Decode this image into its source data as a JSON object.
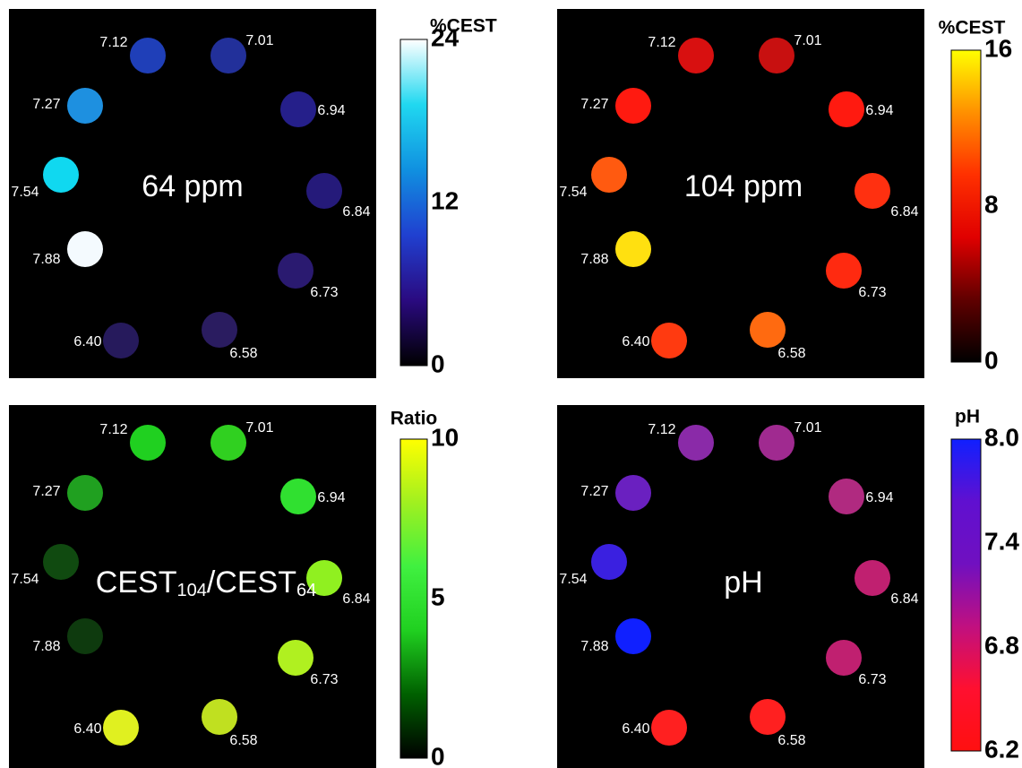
{
  "panels": [
    {
      "label_parts": [
        {
          "text": "64 ppm"
        }
      ],
      "colorbar": {
        "title": "%CEST",
        "ticks": [
          "24",
          "12",
          "0"
        ],
        "gradient": [
          "#000000",
          "#2a0a80",
          "#2040d0",
          "#1090e0",
          "#20d8f0",
          "#ffffff"
        ]
      },
      "spots": [
        {
          "label": "7.12",
          "color": "#1f3fb8"
        },
        {
          "label": "7.01",
          "color": "#22309a"
        },
        {
          "label": "7.27",
          "color": "#1e90e0"
        },
        {
          "label": "6.94",
          "color": "#251f8a"
        },
        {
          "label": "7.54",
          "color": "#10d8f0"
        },
        {
          "label": "6.84",
          "color": "#251a7a"
        },
        {
          "label": "7.88",
          "color": "#f4fafe"
        },
        {
          "label": "6.73",
          "color": "#2a1a70"
        },
        {
          "label": "6.40",
          "color": "#261a5c"
        },
        {
          "label": "6.58",
          "color": "#2a1c60"
        }
      ]
    },
    {
      "label_parts": [
        {
          "text": "104 ppm"
        }
      ],
      "colorbar": {
        "title": "%CEST",
        "ticks": [
          "16",
          "8",
          "0"
        ],
        "gradient": [
          "#000000",
          "#600000",
          "#e00000",
          "#ff3000",
          "#ff9000",
          "#ffff00"
        ]
      },
      "spots": [
        {
          "label": "7.12",
          "color": "#d81010"
        },
        {
          "label": "7.01",
          "color": "#c81010"
        },
        {
          "label": "7.27",
          "color": "#ff1a10"
        },
        {
          "label": "6.94",
          "color": "#ff1a10"
        },
        {
          "label": "7.54",
          "color": "#ff5a10"
        },
        {
          "label": "6.84",
          "color": "#ff3010"
        },
        {
          "label": "7.88",
          "color": "#ffe010"
        },
        {
          "label": "6.73",
          "color": "#ff2a10"
        },
        {
          "label": "6.40",
          "color": "#ff3a10"
        },
        {
          "label": "6.58",
          "color": "#ff6a10"
        }
      ]
    },
    {
      "label_parts": [
        {
          "text": "CEST"
        },
        {
          "sub": "104"
        },
        {
          "text": "/CEST"
        },
        {
          "sub": "64"
        }
      ],
      "colorbar": {
        "title": "Ratio",
        "ticks": [
          "10",
          "5",
          "0"
        ],
        "gradient": [
          "#000000",
          "#006000",
          "#20d020",
          "#40f040",
          "#a0f020",
          "#ffff00"
        ]
      },
      "spots": [
        {
          "label": "7.12",
          "color": "#20d020"
        },
        {
          "label": "7.01",
          "color": "#30d020"
        },
        {
          "label": "7.27",
          "color": "#20a020"
        },
        {
          "label": "6.94",
          "color": "#30e030"
        },
        {
          "label": "7.54",
          "color": "#104a10"
        },
        {
          "label": "6.84",
          "color": "#90f020"
        },
        {
          "label": "7.88",
          "color": "#0e3a0e"
        },
        {
          "label": "6.73",
          "color": "#b0f020"
        },
        {
          "label": "6.40",
          "color": "#e0f020"
        },
        {
          "label": "6.58",
          "color": "#c0e020"
        }
      ]
    },
    {
      "label_parts": [
        {
          "text": "pH"
        }
      ],
      "colorbar": {
        "title": "pH",
        "ticks": [
          "8.0",
          "7.4",
          "6.8",
          "6.2"
        ],
        "gradient": [
          "#ff1010",
          "#ff1030",
          "#c01080",
          "#7010c0",
          "#6010d0",
          "#1020ff"
        ]
      },
      "spots": [
        {
          "label": "7.12",
          "color": "#8a2aa8"
        },
        {
          "label": "7.01",
          "color": "#a02a90"
        },
        {
          "label": "7.27",
          "color": "#6a20c0"
        },
        {
          "label": "6.94",
          "color": "#b02a80"
        },
        {
          "label": "7.54",
          "color": "#3a20e0"
        },
        {
          "label": "6.84",
          "color": "#c02070"
        },
        {
          "label": "7.88",
          "color": "#1020ff"
        },
        {
          "label": "6.73",
          "color": "#c02070"
        },
        {
          "label": "6.40",
          "color": "#ff2020"
        },
        {
          "label": "6.58",
          "color": "#ff2020"
        }
      ]
    }
  ]
}
